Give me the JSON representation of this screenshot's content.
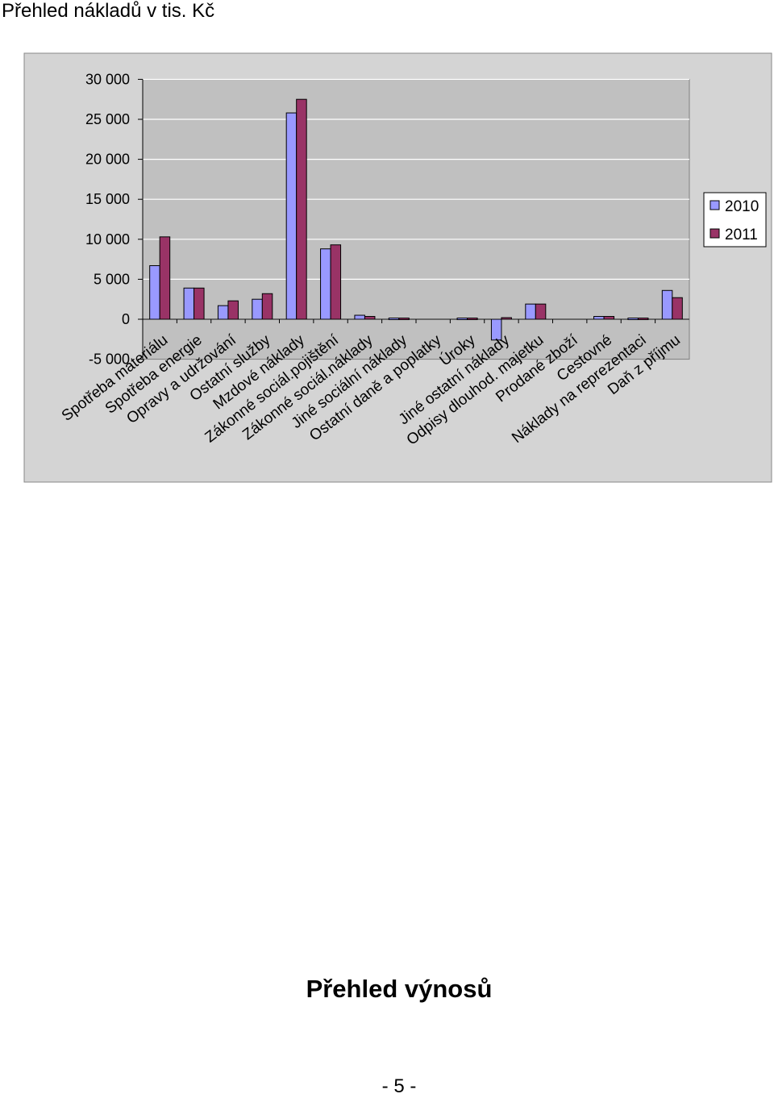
{
  "page": {
    "title": "Přehled nákladů v tis. Kč",
    "section_heading": "Přehled výnosů",
    "page_number": "- 5 -"
  },
  "colors": {
    "series_2010": "#9999ff",
    "series_2011": "#993366",
    "plot_background": "#c0c0c0",
    "outer_background": "#d4d4d4",
    "gridline": "#ffffff"
  },
  "chart_data": {
    "type": "bar",
    "title": "Přehled nákladů v tis. Kč",
    "xlabel": "",
    "ylabel": "",
    "ylim": [
      -5000,
      30000
    ],
    "yticks": [
      30000,
      25000,
      20000,
      15000,
      10000,
      5000,
      0,
      -5000
    ],
    "ytick_labels": [
      "30 000",
      "25 000",
      "20 000",
      "15 000",
      "10 000",
      "5 000",
      "0",
      "-5 000"
    ],
    "grid": true,
    "legend_position": "right",
    "categories": [
      "Spotřeba materiálu",
      "Spotřeba energie",
      "Opravy a udržování",
      "Ostatní služby",
      "Mzdové náklady",
      "Zákonné sociál.pojištění",
      "Zákonné sociál.náklady",
      "Jiné sociální náklady",
      "Ostatní daně a poplatky",
      "Úroky",
      "Jiné ostatní náklady",
      "Odpisy dlouhod. majetku",
      "Prodané zboží",
      "Cestovné",
      "Náklady na reprezentaci",
      "Daň z příjmu"
    ],
    "series": [
      {
        "name": "2010",
        "values": [
          6700,
          3900,
          1700,
          2500,
          25800,
          8800,
          500,
          150,
          0,
          150,
          -2600,
          1900,
          0,
          350,
          150,
          3600
        ]
      },
      {
        "name": "2011",
        "values": [
          10300,
          3900,
          2300,
          3200,
          27500,
          9300,
          350,
          150,
          0,
          150,
          200,
          1900,
          0,
          350,
          150,
          2700
        ]
      }
    ]
  }
}
